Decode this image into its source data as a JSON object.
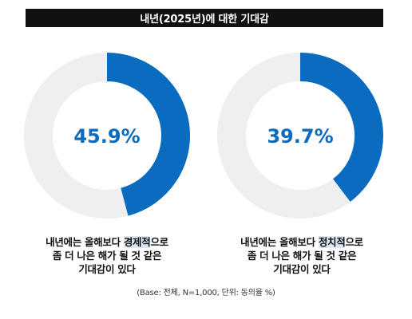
{
  "title": "내년(2025년)에 대한 기대감",
  "footnote": "(Base: 전체, N=1,000, 단위: 동의율 %)",
  "colors": {
    "accent": "#0b6bbf",
    "track": "#efefef",
    "title_bg": "#111111"
  },
  "charts": [
    {
      "value_label": "45.9%",
      "caption_line1_pre": "내년에는 올해보다 ",
      "caption_line1_hl": "경제적",
      "caption_line1_post": "으로",
      "caption_line2": "좀 더 나은 해가 될 것 같은",
      "caption_line3": "기대감이 있다"
    },
    {
      "value_label": "39.7%",
      "caption_line1_pre": "내년에는 올해보다 ",
      "caption_line1_hl": "정치적",
      "caption_line1_post": "으로",
      "caption_line2": "좀 더 나은 해가 될 것 같은",
      "caption_line3": "기대감이 있다"
    }
  ],
  "chart_data": [
    {
      "type": "pie",
      "categories": [
        "경제적"
      ],
      "values": [
        45.9
      ],
      "unit": "%"
    },
    {
      "type": "pie",
      "categories": [
        "정치적"
      ],
      "values": [
        39.7
      ],
      "unit": "%"
    }
  ]
}
